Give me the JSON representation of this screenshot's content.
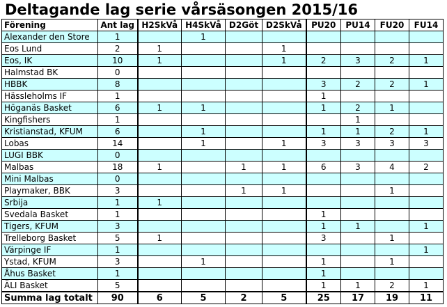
{
  "title": "Deltagande lag serie vårsäsongen 2015/16",
  "headers": [
    "Förening",
    "Ant lag",
    "H2SkVå",
    "H4SkVå",
    "D2Göt",
    "D2SkVå",
    "PU20",
    "PU14",
    "FU20",
    "FU14"
  ],
  "rows": [
    {
      "name": "Alexander den Store",
      "cells": [
        "1",
        "",
        "1",
        "",
        "",
        "",
        "",
        "",
        ""
      ]
    },
    {
      "name": "Eos Lund",
      "cells": [
        "2",
        "1",
        "",
        "",
        "1",
        "",
        "",
        "",
        ""
      ]
    },
    {
      "name": "Eos, IK",
      "cells": [
        "10",
        "1",
        "",
        "",
        "1",
        "2",
        "3",
        "2",
        "1"
      ]
    },
    {
      "name": "Halmstad BK",
      "cells": [
        "0",
        "",
        "",
        "",
        "",
        "",
        "",
        "",
        ""
      ]
    },
    {
      "name": "HBBK",
      "cells": [
        "8",
        "",
        "",
        "",
        "",
        "3",
        "2",
        "2",
        "1"
      ]
    },
    {
      "name": "Hässleholms IF",
      "cells": [
        "1",
        "",
        "",
        "",
        "",
        "1",
        "",
        "",
        ""
      ]
    },
    {
      "name": "Höganäs Basket",
      "cells": [
        "6",
        "1",
        "1",
        "",
        "",
        "1",
        "2",
        "1",
        ""
      ]
    },
    {
      "name": "Kingfishers",
      "cells": [
        "1",
        "",
        "",
        "",
        "",
        "",
        "1",
        "",
        ""
      ]
    },
    {
      "name": "Kristianstad, KFUM",
      "cells": [
        "6",
        "",
        "1",
        "",
        "",
        "1",
        "1",
        "2",
        "1"
      ]
    },
    {
      "name": "Lobas",
      "cells": [
        "14",
        "",
        "1",
        "",
        "1",
        "3",
        "3",
        "3",
        "3"
      ]
    },
    {
      "name": "LUGI BBK",
      "cells": [
        "0",
        "",
        "",
        "",
        "",
        "",
        "",
        "",
        ""
      ]
    },
    {
      "name": "Malbas",
      "cells": [
        "18",
        "1",
        "",
        "1",
        "1",
        "6",
        "3",
        "4",
        "2"
      ]
    },
    {
      "name": "Mini Malbas",
      "cells": [
        "0",
        "",
        "",
        "",
        "",
        "",
        "",
        "",
        ""
      ]
    },
    {
      "name": "Playmaker, BBK",
      "cells": [
        "3",
        "",
        "",
        "1",
        "1",
        "",
        "",
        "1",
        ""
      ]
    },
    {
      "name": "Srbija",
      "cells": [
        "1",
        "1",
        "",
        "",
        "",
        "",
        "",
        "",
        ""
      ]
    },
    {
      "name": "Svedala Basket",
      "cells": [
        "1",
        "",
        "",
        "",
        "",
        "1",
        "",
        "",
        ""
      ]
    },
    {
      "name": "Tigers, KFUM",
      "cells": [
        "3",
        "",
        "",
        "",
        "",
        "1",
        "1",
        "",
        "1"
      ]
    },
    {
      "name": "Trelleborg Basket",
      "cells": [
        "5",
        "1",
        "",
        "",
        "",
        "3",
        "",
        "1",
        ""
      ]
    },
    {
      "name": "Värpinge IF",
      "cells": [
        "1",
        "",
        "",
        "",
        "",
        "",
        "",
        "",
        "1"
      ]
    },
    {
      "name": "Ystad, KFUM",
      "cells": [
        "3",
        "",
        "1",
        "",
        "",
        "1",
        "",
        "1",
        ""
      ]
    },
    {
      "name": "Åhus Basket",
      "cells": [
        "1",
        "",
        "",
        "",
        "",
        "1",
        "",
        "",
        ""
      ]
    },
    {
      "name": "ÄLI Basket",
      "cells": [
        "5",
        "",
        "",
        "",
        "",
        "1",
        "1",
        "2",
        "1"
      ]
    }
  ],
  "total": {
    "name": "Summa lag totalt",
    "cells": [
      "90",
      "6",
      "5",
      "2",
      "5",
      "25",
      "17",
      "19",
      "11"
    ]
  },
  "colors": {
    "row_highlight": "#ccffff",
    "row_plain": "#ffffff",
    "border": "#000000"
  }
}
